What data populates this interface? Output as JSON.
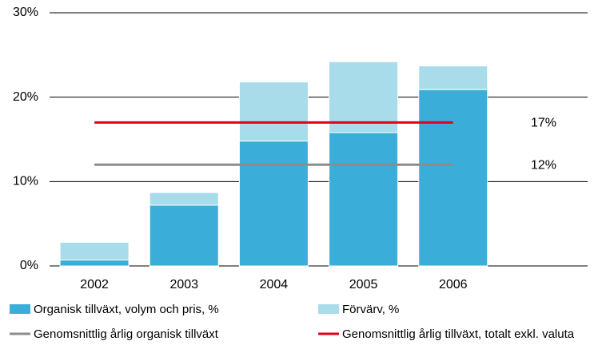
{
  "chart_data": {
    "type": "bar",
    "stacked": true,
    "categories": [
      "2002",
      "2003",
      "2004",
      "2005",
      "2006",
      null
    ],
    "series": [
      {
        "name": "Organisk tillväxt, volym och pris, %",
        "color": "#3aaed8",
        "values": [
          0.7,
          7.2,
          14.8,
          15.8,
          20.9,
          null
        ]
      },
      {
        "name": "Förvärv, %",
        "color": "#a8dcea",
        "values": [
          2.1,
          1.5,
          7.0,
          8.4,
          2.8,
          null
        ]
      },
      {
        "name": "Genomsnittlig årlig organisk tillväxt",
        "type": "line",
        "color": "#8c8c8c",
        "values": [
          12,
          12,
          12,
          12,
          12,
          null
        ],
        "value_labels": [
          null,
          null,
          null,
          null,
          "12%",
          null
        ]
      },
      {
        "name": "Genomsnittlig årlig tillväxt, totalt exkl. valuta",
        "type": "line",
        "color": "#e2001a",
        "values": [
          17,
          17,
          17,
          17,
          17,
          null
        ],
        "value_labels": [
          null,
          null,
          null,
          null,
          "17%",
          null
        ]
      }
    ],
    "ylim": [
      0,
      30
    ],
    "yticks": [
      {
        "value": 0,
        "label": "0%"
      },
      {
        "value": 10,
        "label": "10%"
      },
      {
        "value": 20,
        "label": "20%"
      },
      {
        "value": 30,
        "label": "30%"
      }
    ],
    "grid": true
  }
}
